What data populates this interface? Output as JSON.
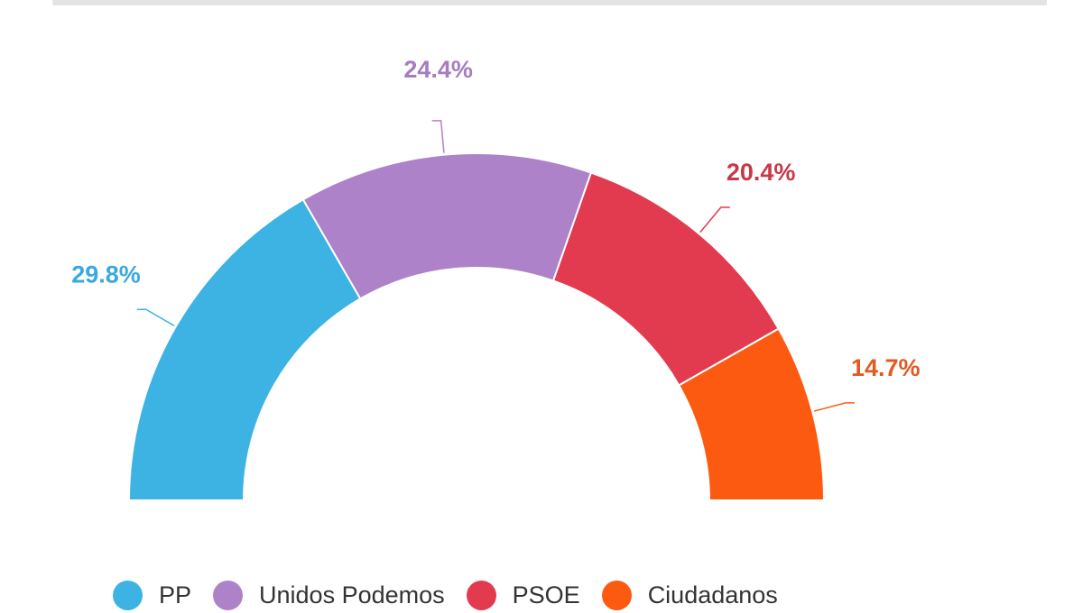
{
  "chart_data": {
    "type": "pie",
    "variant": "semi-donut",
    "categories": [
      "PP",
      "Unidos Podemos",
      "PSOE",
      "Ciudadanos"
    ],
    "values": [
      29.8,
      24.4,
      20.4,
      14.7
    ],
    "labels": [
      "29.8%",
      "24.4%",
      "20.4%",
      "14.7%"
    ],
    "colors": [
      "#3db3e3",
      "#ad82c9",
      "#e23a4e",
      "#fc5a10"
    ],
    "label_colors": [
      "#3aa9dc",
      "#a67cc2",
      "#c93848",
      "#e05a22"
    ],
    "legend": {
      "position": "bottom",
      "entries": [
        "PP",
        "Unidos Podemos",
        "PSOE",
        "Ciudadanos"
      ]
    }
  }
}
